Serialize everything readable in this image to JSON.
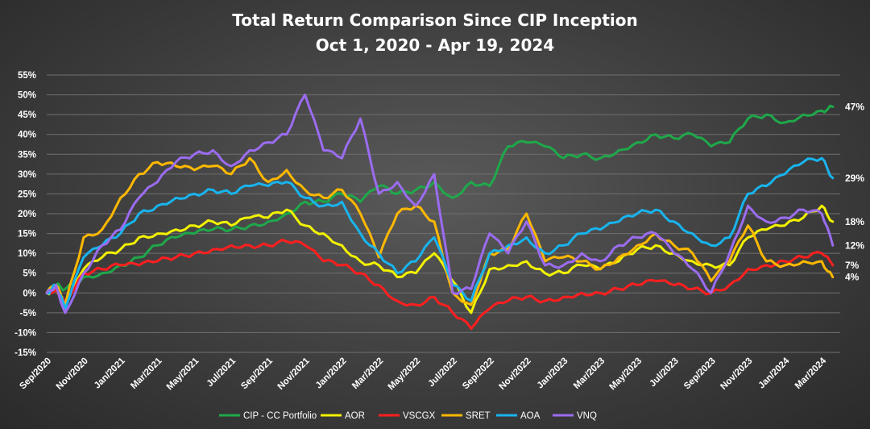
{
  "chart_data": {
    "type": "line",
    "title": "Total Return Comparison Since CIP Inception",
    "subtitle": "Oct 1, 2020 - Apr 19, 2024",
    "xlabel": "",
    "ylabel": "",
    "ylim": [
      -15,
      55
    ],
    "y_ticks": [
      "55%",
      "50%",
      "45%",
      "40%",
      "35%",
      "30%",
      "25%",
      "20%",
      "15%",
      "10%",
      "5%",
      "0%",
      "-5%",
      "-10%",
      "-15%"
    ],
    "x_ticks": [
      "Sep/2020",
      "Nov/2020",
      "Jan/2021",
      "Mar/2021",
      "May/2021",
      "Jul/2021",
      "Sep/2021",
      "Nov/2021",
      "Jan/2022",
      "Mar/2022",
      "May/2022",
      "Jul/2022",
      "Sep/2022",
      "Nov/2022",
      "Jan/2023",
      "Mar/2023",
      "May/2023",
      "Jul/2023",
      "Sep/2023",
      "Nov/2023",
      "Jan/2024",
      "Mar/2024"
    ],
    "grid": true,
    "legend_position": "bottom",
    "x_unit": "months since Sep/2020",
    "series": [
      {
        "name": "CIP - CC Portfolio",
        "color": "#1fa84a",
        "end_label": "47%",
        "x": [
          0,
          0.5,
          1,
          2,
          3,
          4,
          5,
          6,
          7,
          8,
          9,
          10,
          11,
          12,
          13,
          14,
          15,
          16,
          17,
          18,
          19,
          20,
          21,
          22,
          23,
          24,
          25,
          26,
          27,
          28,
          29,
          30,
          31,
          32,
          33,
          34,
          35,
          36,
          37,
          38,
          39,
          40,
          41,
          42,
          42.6
        ],
        "values": [
          0,
          2,
          1,
          4,
          5,
          7,
          9,
          12,
          14,
          15,
          16,
          16,
          17,
          18,
          20,
          23,
          23,
          25,
          23,
          27,
          25,
          26,
          28,
          24,
          28,
          27,
          37,
          38,
          37,
          34,
          35,
          34,
          36,
          38,
          40,
          39,
          40,
          37,
          38,
          44,
          45,
          43,
          45,
          46,
          47
        ]
      },
      {
        "name": "AOR",
        "color": "#f2f200",
        "end_label": "18%",
        "x": [
          0,
          0.5,
          1,
          2,
          3,
          4,
          5,
          6,
          7,
          8,
          9,
          10,
          11,
          12,
          13,
          14,
          15,
          16,
          17,
          18,
          19,
          20,
          21,
          22,
          23,
          24,
          25,
          26,
          27,
          28,
          29,
          30,
          31,
          32,
          33,
          34,
          35,
          36,
          37,
          38,
          39,
          40,
          41,
          42,
          42.6
        ],
        "values": [
          0,
          1,
          -3,
          6,
          9,
          11,
          14,
          15,
          16,
          17,
          18,
          17,
          19,
          19,
          21,
          17,
          15,
          12,
          8,
          7,
          4,
          5,
          10,
          3,
          -5,
          6,
          7,
          8,
          5,
          5,
          7,
          6,
          8,
          11,
          12,
          10,
          8,
          7,
          7,
          14,
          16,
          17,
          19,
          22,
          18
        ]
      },
      {
        "name": "VSCGX",
        "color": "#ff1f1f",
        "end_label": "7%",
        "x": [
          0,
          0.5,
          1,
          2,
          3,
          4,
          5,
          6,
          7,
          8,
          9,
          10,
          11,
          12,
          13,
          14,
          15,
          16,
          17,
          18,
          19,
          20,
          21,
          22,
          23,
          24,
          25,
          26,
          27,
          28,
          29,
          30,
          31,
          32,
          33,
          34,
          35,
          36,
          37,
          38,
          39,
          40,
          41,
          42,
          42.6
        ],
        "values": [
          0,
          1,
          -2,
          5,
          6,
          7,
          7,
          8,
          9,
          10,
          11,
          12,
          12,
          12,
          13,
          12,
          8,
          7,
          5,
          2,
          -2,
          -3,
          -1,
          -5,
          -9,
          -4,
          -2,
          -1,
          -2,
          -1,
          0,
          0,
          1,
          2,
          3,
          2,
          1,
          0,
          2,
          6,
          7,
          8,
          9,
          10,
          7
        ]
      },
      {
        "name": "SRET",
        "color": "#ffb800",
        "end_label": "4%",
        "x": [
          0,
          0.5,
          1,
          2,
          3,
          4,
          5,
          6,
          7,
          8,
          9,
          10,
          11,
          12,
          13,
          14,
          15,
          16,
          17,
          18,
          19,
          20,
          21,
          22,
          23,
          24,
          25,
          26,
          27,
          28,
          29,
          30,
          31,
          32,
          33,
          34,
          35,
          36,
          37,
          38,
          39,
          40,
          41,
          42,
          42.6
        ],
        "values": [
          0,
          2,
          -3,
          14,
          16,
          24,
          30,
          33,
          32,
          31,
          32,
          30,
          34,
          28,
          31,
          26,
          24,
          26,
          20,
          9,
          20,
          22,
          18,
          0,
          -3,
          10,
          11,
          20,
          8,
          9,
          8,
          6,
          9,
          12,
          15,
          12,
          10,
          3,
          8,
          17,
          8,
          7,
          8,
          8,
          4
        ]
      },
      {
        "name": "AOA",
        "color": "#18b4ee",
        "end_label": "29%",
        "x": [
          0,
          0.5,
          1,
          2,
          3,
          4,
          5,
          6,
          7,
          8,
          9,
          10,
          11,
          12,
          13,
          14,
          15,
          16,
          17,
          18,
          19,
          20,
          21,
          22,
          23,
          24,
          25,
          26,
          27,
          28,
          29,
          30,
          31,
          32,
          33,
          34,
          35,
          36,
          37,
          38,
          39,
          40,
          41,
          42,
          42.6
        ],
        "values": [
          0,
          2,
          -4,
          9,
          12,
          15,
          20,
          22,
          24,
          25,
          26,
          25,
          27,
          27,
          28,
          24,
          22,
          23,
          15,
          10,
          5,
          8,
          14,
          2,
          -2,
          10,
          12,
          14,
          10,
          12,
          15,
          16,
          18,
          20,
          21,
          18,
          15,
          12,
          14,
          25,
          27,
          30,
          33,
          34,
          29
        ]
      },
      {
        "name": "VNQ",
        "color": "#9b6cf0",
        "end_label": "12%",
        "x": [
          0,
          0.5,
          1,
          2,
          3,
          4,
          5,
          6,
          7,
          8,
          9,
          10,
          11,
          12,
          13,
          14,
          15,
          16,
          17,
          18,
          19,
          20,
          21,
          22,
          23,
          24,
          25,
          26,
          27,
          28,
          29,
          30,
          31,
          32,
          33,
          34,
          35,
          36,
          37,
          38,
          39,
          40,
          41,
          42,
          42.6
        ],
        "values": [
          0,
          2,
          -5,
          5,
          12,
          16,
          24,
          28,
          33,
          35,
          36,
          32,
          36,
          38,
          40,
          50,
          36,
          34,
          44,
          25,
          28,
          22,
          30,
          0,
          1,
          15,
          10,
          18,
          7,
          7,
          10,
          8,
          12,
          14,
          15,
          10,
          6,
          0,
          10,
          22,
          18,
          19,
          21,
          20,
          12
        ]
      }
    ]
  }
}
